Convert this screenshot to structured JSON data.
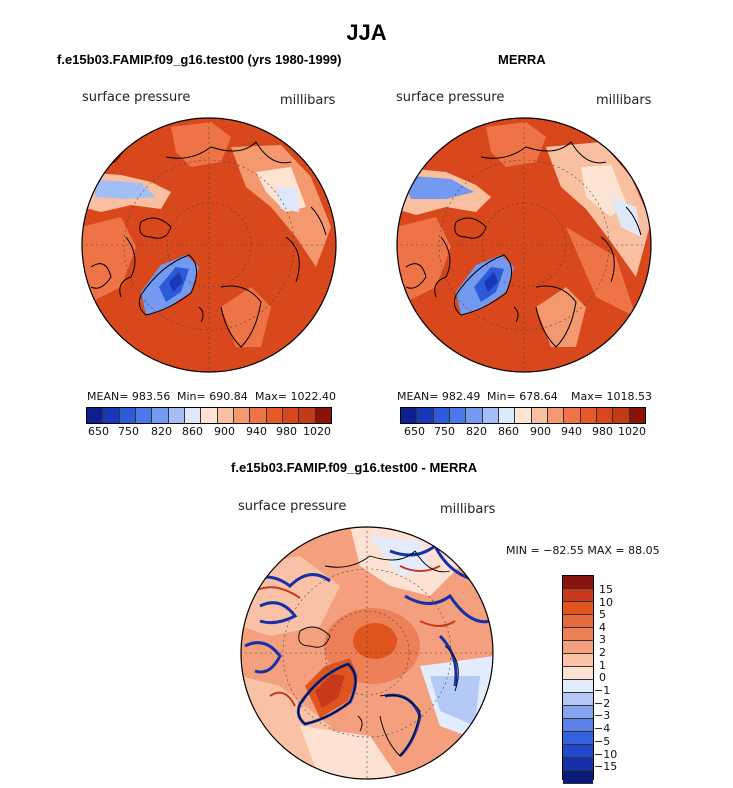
{
  "title": "JJA",
  "panels": [
    {
      "subtitle": "f.e15b03.FAMIP.f09_g16.test00 (yrs 1980-1999)",
      "variable": "surface pressure",
      "units": "millibars",
      "mean_label": "MEAN= 983.56",
      "min_label": "Min= 690.84",
      "max_label": "Max= 1022.40"
    },
    {
      "subtitle": "MERRA",
      "variable": "surface pressure",
      "units": "millibars",
      "mean_label": "MEAN= 982.49",
      "min_label": "Min= 678.64",
      "max_label": "Max= 1018.53"
    },
    {
      "subtitle": "f.e15b03.FAMIP.f09_g16.test00 - MERRA",
      "variable": "surface pressure",
      "units": "millibars",
      "minmax_label": "MIN = −82.55 MAX =  88.05"
    }
  ],
  "colors": {
    "abs_scale": [
      "#0b1f8f",
      "#1838b8",
      "#2c5ad8",
      "#4a7ae8",
      "#7399f0",
      "#a3bdf5",
      "#dde8fa",
      "#fde3d2",
      "#f8c0a0",
      "#f49870",
      "#ee7448",
      "#e65a28",
      "#d9481c",
      "#c43a14",
      "#8a1208"
    ],
    "diff_scale": [
      "#0a1a7a",
      "#1530a8",
      "#2248cc",
      "#3560e0",
      "#5a80ea",
      "#86a4f0",
      "#b5c9f7",
      "#e2ecfc",
      "#fde2d4",
      "#f9c2a6",
      "#f4a07e",
      "#ee8058",
      "#e86a3a",
      "#e0541e",
      "#c8381a",
      "#8a1410"
    ]
  },
  "chart_data": [
    {
      "type": "heatmap",
      "title": "f.e15b03.FAMIP.f09_g16.test00 (yrs 1980-1999)",
      "projection": "north polar stereographic",
      "variable": "surface pressure",
      "units": "millibars",
      "mean": 983.56,
      "min": 690.84,
      "max": 1022.4,
      "colorbar_ticks": [
        "650",
        "750",
        "820",
        "860",
        "900",
        "940",
        "980",
        "1020"
      ]
    },
    {
      "type": "heatmap",
      "title": "MERRA",
      "projection": "north polar stereographic",
      "variable": "surface pressure",
      "units": "millibars",
      "mean": 982.49,
      "min": 678.64,
      "max": 1018.53,
      "colorbar_ticks": [
        "650",
        "750",
        "820",
        "860",
        "900",
        "940",
        "980",
        "1020"
      ]
    },
    {
      "type": "heatmap",
      "title": "f.e15b03.FAMIP.f09_g16.test00 - MERRA",
      "projection": "north polar stereographic",
      "variable": "surface pressure",
      "units": "millibars",
      "min": -82.55,
      "max": 88.05,
      "colorbar_ticks": [
        "15",
        "10",
        "5",
        "4",
        "3",
        "2",
        "1",
        "0",
        "−1",
        "−2",
        "−3",
        "−4",
        "−5",
        "−10",
        "−15"
      ]
    }
  ]
}
